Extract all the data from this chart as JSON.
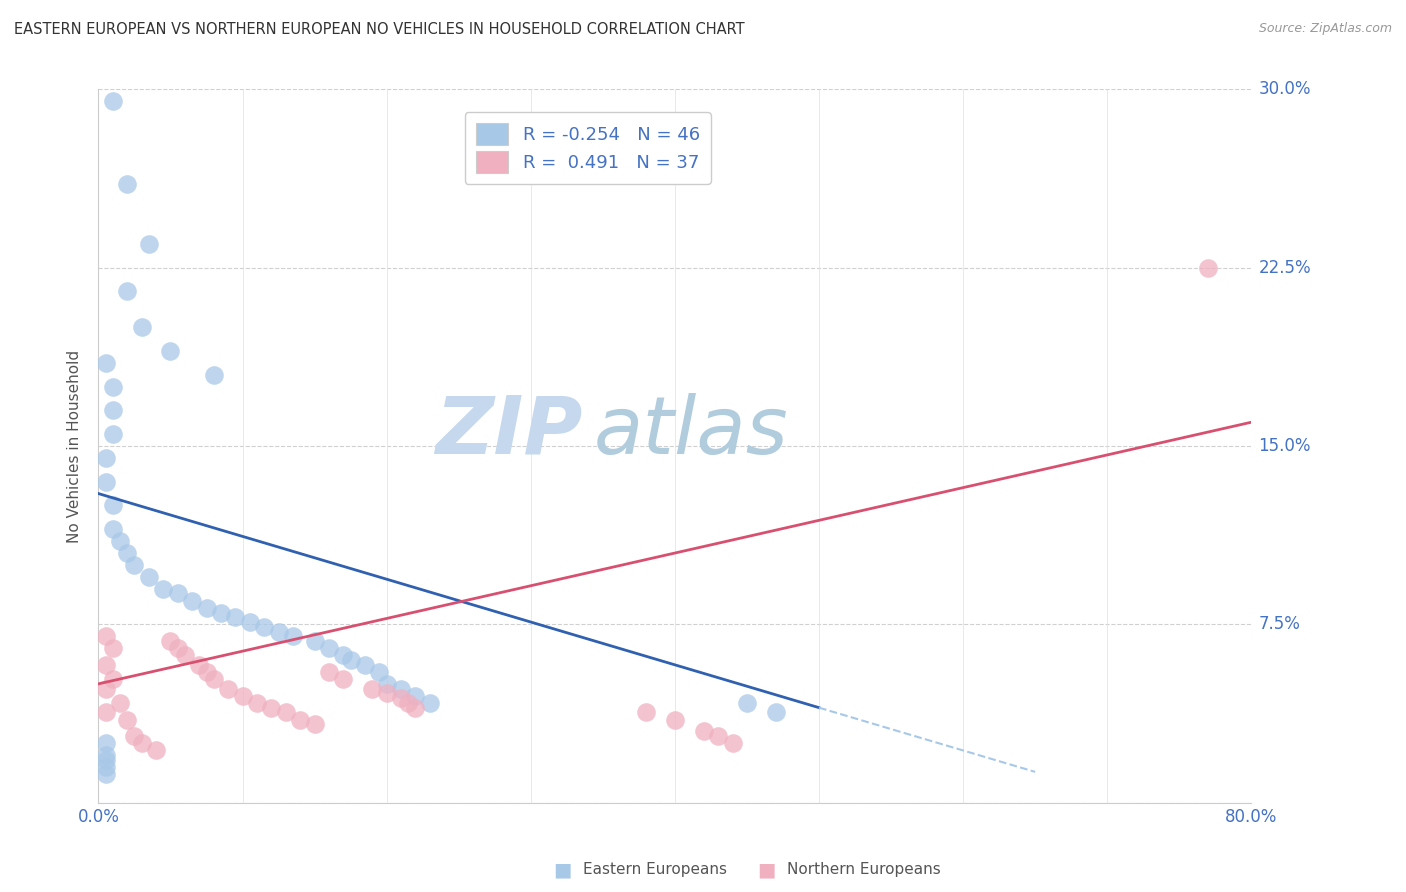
{
  "title": "EASTERN EUROPEAN VS NORTHERN EUROPEAN NO VEHICLES IN HOUSEHOLD CORRELATION CHART",
  "source": "Source: ZipAtlas.com",
  "ylabel": "No Vehicles in Household",
  "legend_r_eastern": "-0.254",
  "legend_n_eastern": "46",
  "legend_r_northern": "0.491",
  "legend_n_northern": "37",
  "color_eastern": "#a8c8e8",
  "color_northern": "#f0b0c0",
  "color_line_eastern": "#3060b0",
  "color_line_northern": "#d85070",
  "color_line_eastern_dashed": "#a8c8e8",
  "color_axis_labels": "#4472c4",
  "xlim": [
    0.0,
    0.8
  ],
  "ylim": [
    0.0,
    0.3
  ],
  "yticks": [
    0.0,
    0.075,
    0.15,
    0.225,
    0.3
  ],
  "ytick_labels": [
    "",
    "7.5%",
    "15.0%",
    "22.5%",
    "30.0%"
  ],
  "watermark_zip_color": "#c8ddf0",
  "watermark_atlas_color": "#b8cce0",
  "background_color": "#ffffff",
  "grid_color": "#d0d0d0",
  "eastern_x": [
    0.01,
    0.02,
    0.035,
    0.02,
    0.03,
    0.05,
    0.08,
    0.005,
    0.01,
    0.01,
    0.01,
    0.005,
    0.005,
    0.01,
    0.01,
    0.015,
    0.02,
    0.025,
    0.035,
    0.045,
    0.055,
    0.065,
    0.075,
    0.085,
    0.095,
    0.105,
    0.115,
    0.125,
    0.135,
    0.15,
    0.16,
    0.17,
    0.175,
    0.185,
    0.195,
    0.2,
    0.21,
    0.22,
    0.23,
    0.005,
    0.005,
    0.005,
    0.005,
    0.005,
    0.45,
    0.47
  ],
  "eastern_y": [
    0.295,
    0.26,
    0.235,
    0.215,
    0.2,
    0.19,
    0.18,
    0.185,
    0.175,
    0.165,
    0.155,
    0.145,
    0.135,
    0.125,
    0.115,
    0.11,
    0.105,
    0.1,
    0.095,
    0.09,
    0.088,
    0.085,
    0.082,
    0.08,
    0.078,
    0.076,
    0.074,
    0.072,
    0.07,
    0.068,
    0.065,
    0.062,
    0.06,
    0.058,
    0.055,
    0.05,
    0.048,
    0.045,
    0.042,
    0.025,
    0.02,
    0.018,
    0.015,
    0.012,
    0.042,
    0.038
  ],
  "northern_x": [
    0.005,
    0.005,
    0.005,
    0.005,
    0.01,
    0.01,
    0.015,
    0.02,
    0.025,
    0.03,
    0.04,
    0.05,
    0.055,
    0.06,
    0.07,
    0.075,
    0.08,
    0.09,
    0.1,
    0.11,
    0.12,
    0.13,
    0.14,
    0.15,
    0.16,
    0.17,
    0.19,
    0.2,
    0.21,
    0.215,
    0.22,
    0.38,
    0.4,
    0.42,
    0.43,
    0.44,
    0.77
  ],
  "northern_y": [
    0.07,
    0.058,
    0.048,
    0.038,
    0.065,
    0.052,
    0.042,
    0.035,
    0.028,
    0.025,
    0.022,
    0.068,
    0.065,
    0.062,
    0.058,
    0.055,
    0.052,
    0.048,
    0.045,
    0.042,
    0.04,
    0.038,
    0.035,
    0.033,
    0.055,
    0.052,
    0.048,
    0.046,
    0.044,
    0.042,
    0.04,
    0.038,
    0.035,
    0.03,
    0.028,
    0.025,
    0.225
  ],
  "line_eastern_x0": 0.0,
  "line_eastern_y0": 0.13,
  "line_eastern_x1": 0.5,
  "line_eastern_y1": 0.04,
  "line_eastern_dash_x0": 0.5,
  "line_eastern_dash_y0": 0.04,
  "line_eastern_dash_x1": 0.65,
  "line_eastern_dash_y1": 0.013,
  "line_northern_x0": 0.0,
  "line_northern_y0": 0.05,
  "line_northern_x1": 0.8,
  "line_northern_y1": 0.16
}
